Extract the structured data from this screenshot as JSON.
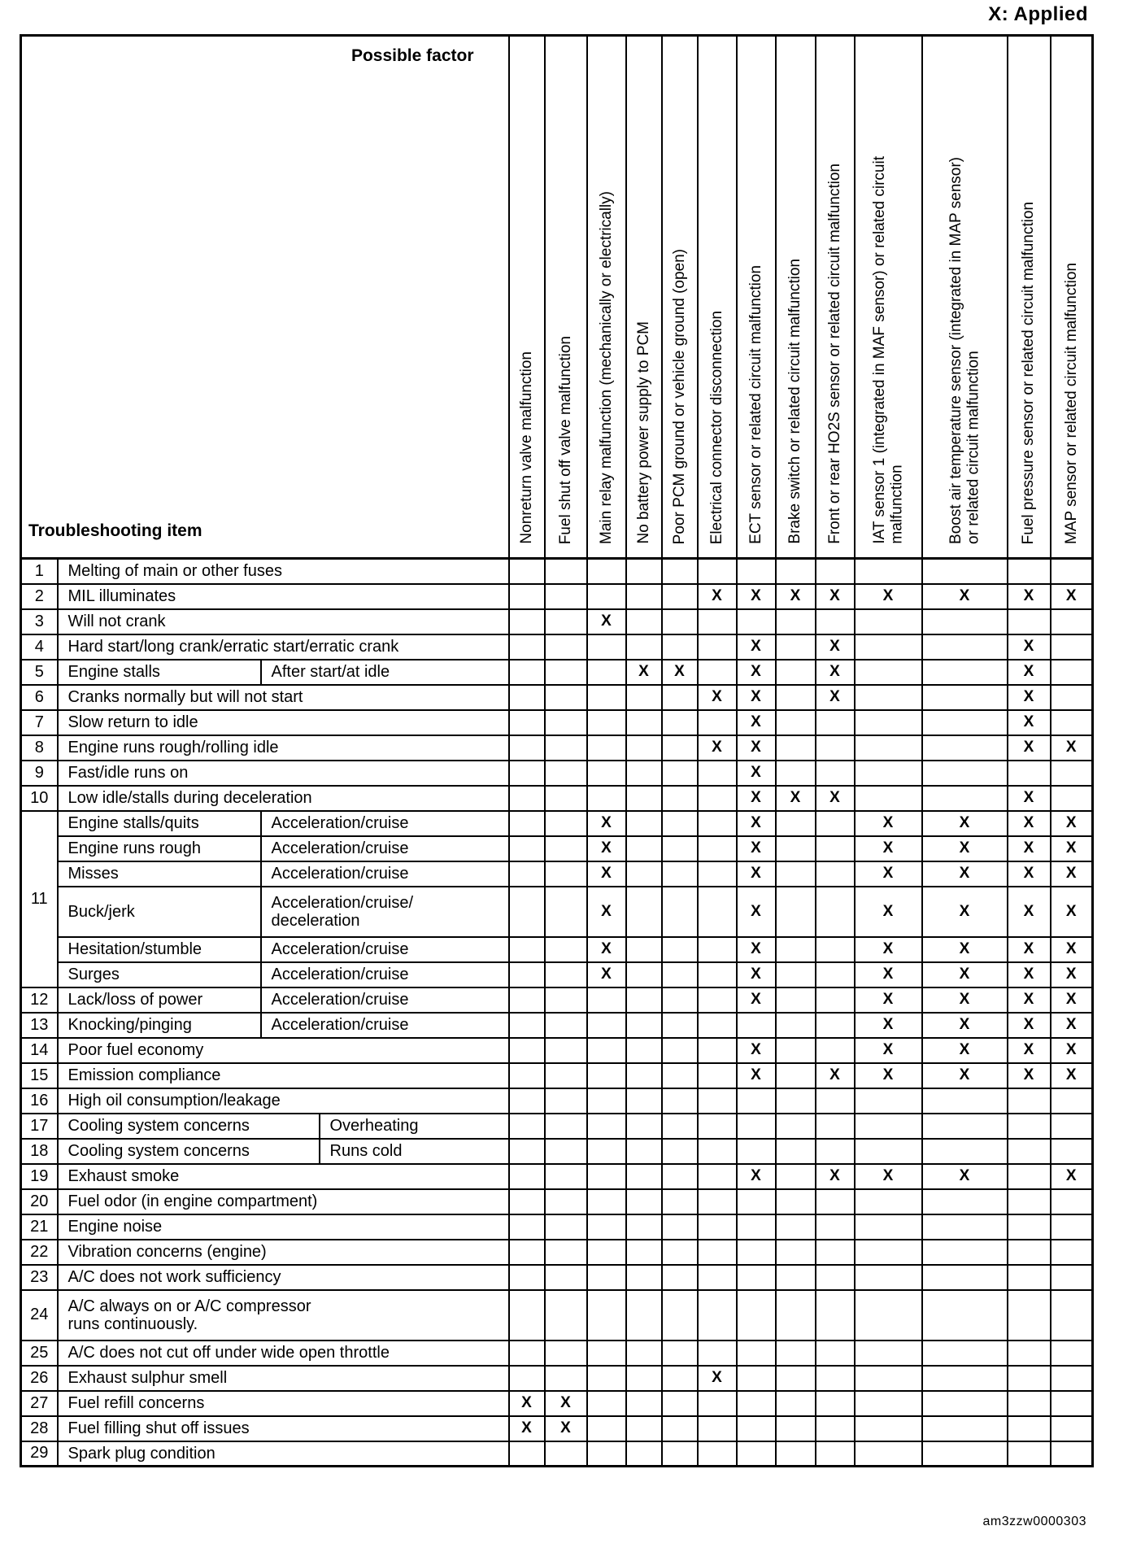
{
  "page": {
    "legend": "X: Applied",
    "doc_code": "am3zzw0000303"
  },
  "table": {
    "possible_factor_label": "Possible factor",
    "troubleshooting_item_label": "Troubleshooting item",
    "mark": "X",
    "factors": [
      "Nonreturn valve malfunction",
      "Fuel shut off valve malfunction",
      "Main relay malfunction (mechanically or electrically)",
      "No battery power supply to PCM",
      "Poor PCM ground or vehicle ground (open)",
      "Electrical connector disconnection",
      "ECT sensor or related circuit malfunction",
      "Brake switch or related circuit malfunction",
      "Front or rear HO2S sensor or related circuit malfunction",
      "IAT sensor 1 (integrated in MAF sensor) or related circuit\nmalfunction",
      "Boost air temperature sensor (integrated in MAP sensor)\nor related circuit malfunction",
      "Fuel pressure sensor or related circuit malfunction",
      "MAP sensor or related circuit malfunction"
    ],
    "rows": [
      {
        "num": "1",
        "split": "none",
        "item": "Melting of main or other fuses",
        "marks": []
      },
      {
        "num": "2",
        "split": "none",
        "item": "MIL illuminates",
        "marks": [
          6,
          7,
          8,
          9,
          10,
          11,
          12,
          13
        ]
      },
      {
        "num": "3",
        "split": "none",
        "item": "Will not crank",
        "marks": [
          3
        ]
      },
      {
        "num": "4",
        "split": "none",
        "item": "Hard start/long crank/erratic start/erratic crank",
        "marks": [
          7,
          9,
          12
        ]
      },
      {
        "num": "5",
        "split": "narrow",
        "item": "Engine stalls",
        "condition": "After start/at idle",
        "marks": [
          4,
          5,
          7,
          9,
          12
        ]
      },
      {
        "num": "6",
        "split": "none",
        "item": "Cranks normally but will not start",
        "marks": [
          6,
          7,
          9,
          12
        ]
      },
      {
        "num": "7",
        "split": "none",
        "item": "Slow return to idle",
        "marks": [
          7,
          12
        ]
      },
      {
        "num": "8",
        "split": "none",
        "item": "Engine runs rough/rolling idle",
        "marks": [
          6,
          7,
          12,
          13
        ]
      },
      {
        "num": "9",
        "split": "none",
        "item": "Fast/idle runs on",
        "marks": [
          7
        ]
      },
      {
        "num": "10",
        "split": "none",
        "item": "Low idle/stalls during deceleration",
        "marks": [
          7,
          8,
          9,
          12
        ]
      },
      {
        "num": "11",
        "numRowspan": 6,
        "split": "narrow",
        "item": "Engine stalls/quits",
        "condition": "Acceleration/cruise",
        "marks": [
          3,
          7,
          10,
          11,
          12,
          13
        ]
      },
      {
        "split": "narrow",
        "item": "Engine runs rough",
        "condition": "Acceleration/cruise",
        "marks": [
          3,
          7,
          10,
          11,
          12,
          13
        ]
      },
      {
        "split": "narrow",
        "item": "Misses",
        "condition": "Acceleration/cruise",
        "marks": [
          3,
          7,
          10,
          11,
          12,
          13
        ]
      },
      {
        "split": "narrow",
        "tall": true,
        "item": "Buck/jerk",
        "condition": "Acceleration/cruise/\ndeceleration",
        "marks": [
          3,
          7,
          10,
          11,
          12,
          13
        ]
      },
      {
        "split": "narrow",
        "item": "Hesitation/stumble",
        "condition": "Acceleration/cruise",
        "marks": [
          3,
          7,
          10,
          11,
          12,
          13
        ]
      },
      {
        "split": "narrow",
        "item": "Surges",
        "condition": "Acceleration/cruise",
        "marks": [
          3,
          7,
          10,
          11,
          12,
          13
        ]
      },
      {
        "num": "12",
        "split": "narrow",
        "item": "Lack/loss of power",
        "condition": "Acceleration/cruise",
        "marks": [
          7,
          10,
          11,
          12,
          13
        ]
      },
      {
        "num": "13",
        "split": "narrow",
        "item": "Knocking/pinging",
        "condition": "Acceleration/cruise",
        "marks": [
          10,
          11,
          12,
          13
        ]
      },
      {
        "num": "14",
        "split": "none",
        "item": "Poor fuel economy",
        "marks": [
          7,
          10,
          11,
          12,
          13
        ]
      },
      {
        "num": "15",
        "split": "none",
        "item": "Emission compliance",
        "marks": [
          7,
          9,
          10,
          11,
          12,
          13
        ]
      },
      {
        "num": "16",
        "split": "none",
        "item": "High oil consumption/leakage",
        "marks": []
      },
      {
        "num": "17",
        "split": "wide",
        "item": "Cooling system concerns",
        "condition": "Overheating",
        "marks": []
      },
      {
        "num": "18",
        "split": "wide",
        "item": "Cooling system concerns",
        "condition": "Runs cold",
        "marks": []
      },
      {
        "num": "19",
        "split": "none",
        "item": "Exhaust smoke",
        "marks": [
          7,
          9,
          10,
          11,
          13
        ]
      },
      {
        "num": "20",
        "split": "none",
        "item": "Fuel odor (in engine compartment)",
        "marks": []
      },
      {
        "num": "21",
        "split": "none",
        "item": "Engine noise",
        "marks": []
      },
      {
        "num": "22",
        "split": "none",
        "item": "Vibration concerns (engine)",
        "marks": []
      },
      {
        "num": "23",
        "split": "none",
        "item": "A/C does not work sufficiency",
        "marks": []
      },
      {
        "num": "24",
        "split": "none",
        "tall": true,
        "item": "A/C always on or A/C compressor\nruns continuously.",
        "marks": []
      },
      {
        "num": "25",
        "split": "none",
        "item": "A/C does not cut off under wide open throttle",
        "marks": []
      },
      {
        "num": "26",
        "split": "none",
        "item": "Exhaust sulphur smell",
        "marks": [
          6
        ]
      },
      {
        "num": "27",
        "split": "none",
        "item": "Fuel refill concerns",
        "marks": [
          1,
          2
        ]
      },
      {
        "num": "28",
        "split": "none",
        "item": "Fuel filling shut off issues",
        "marks": [
          1,
          2
        ]
      },
      {
        "num": "29",
        "split": "none",
        "item": "Spark plug condition",
        "marks": []
      }
    ]
  }
}
